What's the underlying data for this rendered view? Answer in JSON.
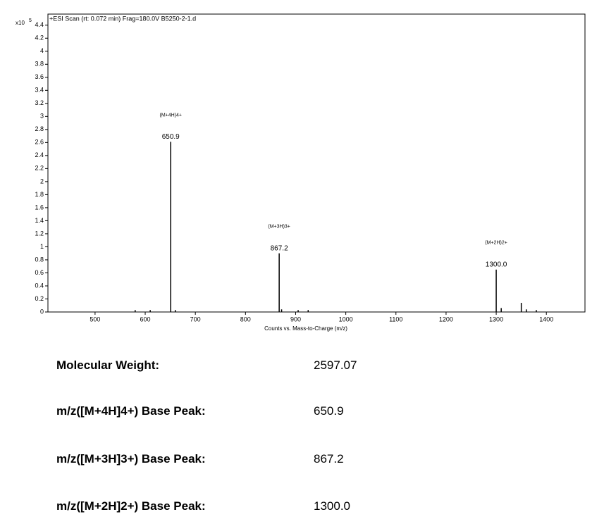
{
  "chart_data": {
    "type": "stem",
    "title": "+ESI Scan (rt: 0.072 min) Frag=180.0V B5250-2-1.d",
    "y_multiplier": "x10",
    "y_exponent": "5",
    "xlabel": "Counts vs. Mass-to-Charge (m/z)",
    "x": [
      580,
      610,
      650.9,
      660,
      867.2,
      872,
      905,
      925,
      1300.0,
      1310,
      1350,
      1360,
      1380
    ],
    "values": [
      0.03,
      0.03,
      2.61,
      0.03,
      0.9,
      0.04,
      0.03,
      0.03,
      0.65,
      0.06,
      0.14,
      0.04,
      0.03
    ],
    "color": "#000000",
    "annotations": [
      {
        "x": 650.9,
        "label": "650.9",
        "ion": "(M+4H)4+"
      },
      {
        "x": 867.2,
        "label": "867.2",
        "ion": "(M+3H)3+"
      },
      {
        "x": 1300.0,
        "label": "1300.0",
        "ion": "(M+2H)2+"
      }
    ],
    "xlim": [
      406,
      1477
    ],
    "ylim": [
      0,
      4.57
    ],
    "xticks": [
      500,
      600,
      700,
      800,
      900,
      1000,
      1100,
      1200,
      1300,
      1400
    ],
    "yticks": [
      0,
      0.2,
      0.4,
      0.6,
      0.8,
      1,
      1.2,
      1.4,
      1.6,
      1.8,
      2,
      2.2,
      2.4,
      2.6,
      2.8,
      3,
      3.2,
      3.4,
      3.6,
      3.8,
      4,
      4.2,
      4.4
    ]
  },
  "table": {
    "rows": [
      [
        "Molecular Weight:",
        "2597.07"
      ],
      [
        "m/z([M+4H]4+) Base Peak:",
        "650.9"
      ],
      [
        "m/z([M+3H]3+) Base Peak:",
        "867.2"
      ],
      [
        "m/z([M+2H]2+) Base Peak:",
        "1300.0"
      ]
    ]
  }
}
